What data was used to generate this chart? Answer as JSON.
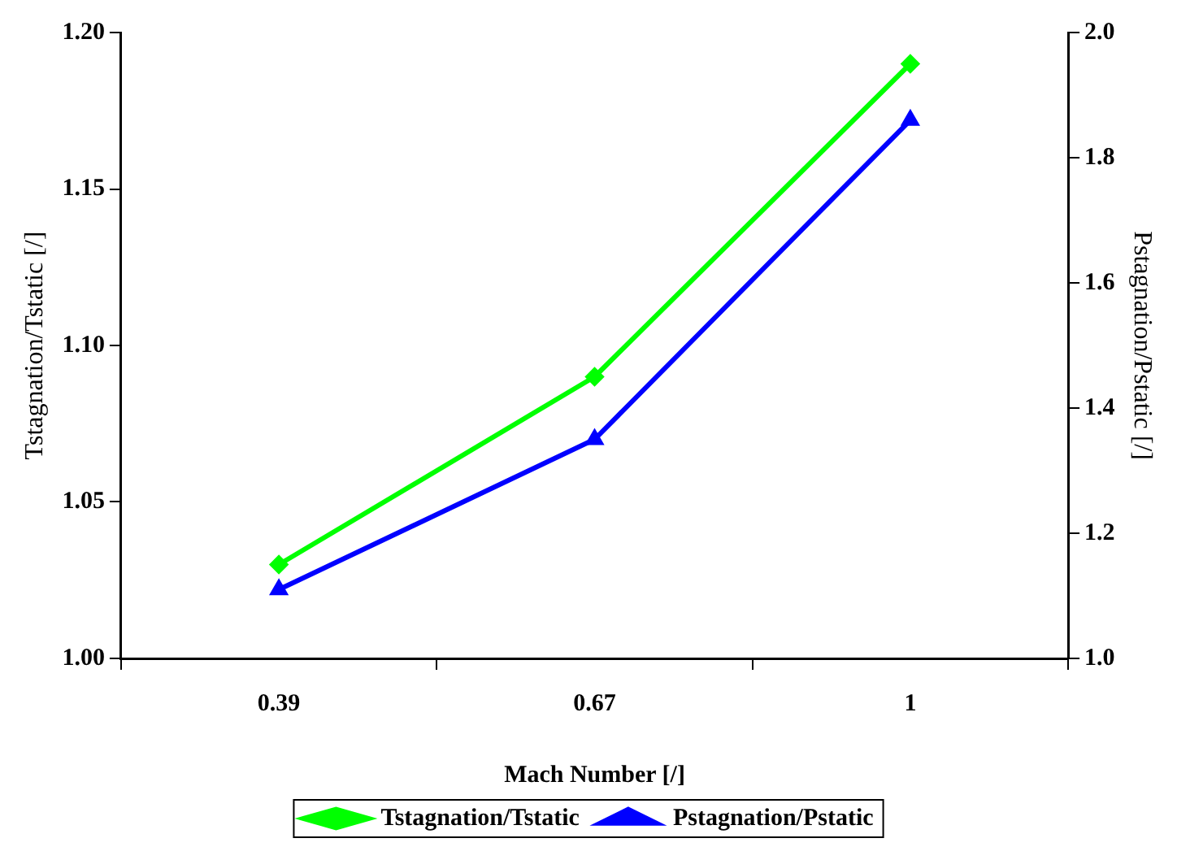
{
  "chart_data": {
    "type": "line",
    "xlabel": "Mach Number [/]",
    "ylabel": "Tstagnation/Tstatic [/]",
    "y2label": "Pstagnation/Pstatic [/]",
    "categories": [
      "0.39",
      "0.67",
      "1"
    ],
    "series": [
      {
        "name": "Tstagnation/Tstatic",
        "color": "#00ff00",
        "values": [
          1.03,
          1.09,
          1.19
        ],
        "marker": "diamond"
      },
      {
        "name": "Pstagnation/Pstatic",
        "color": "#0000ff",
        "values": [
          1.11,
          1.35,
          1.86
        ],
        "marker": "triangle",
        "axis": "y2"
      }
    ],
    "ylim": [
      1.0,
      1.2
    ],
    "yticks": [
      {
        "value": 1.0,
        "label": "1.00"
      },
      {
        "value": 1.05,
        "label": "1.05"
      },
      {
        "value": 1.1,
        "label": "1.10"
      },
      {
        "value": 1.15,
        "label": "1.15"
      },
      {
        "value": 1.2,
        "label": "1.20"
      }
    ],
    "y2lim": [
      1.0,
      2.0
    ],
    "y2ticks": [
      {
        "value": 1.0,
        "label": "1.0"
      },
      {
        "value": 1.2,
        "label": "1.2"
      },
      {
        "value": 1.4,
        "label": "1.4"
      },
      {
        "value": 1.6,
        "label": "1.6"
      },
      {
        "value": 1.8,
        "label": "1.8"
      },
      {
        "value": 2.0,
        "label": "2.0"
      }
    ],
    "grid": false,
    "legend": "bottom",
    "line_style": "solid"
  }
}
